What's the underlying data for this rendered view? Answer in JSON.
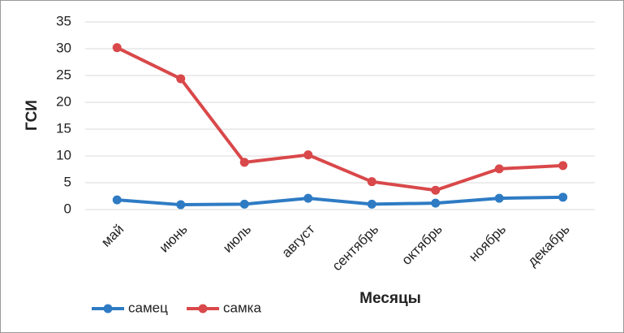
{
  "chart_data": {
    "type": "line",
    "x_label": "Месяцы",
    "y_label": "ГСИ",
    "categories": [
      "май",
      "июнь",
      "июль",
      "август",
      "сентябрь",
      "октябрь",
      "ноябрь",
      "декабрь"
    ],
    "series": [
      {
        "name": "самец",
        "color": "#2e7bc4",
        "values": [
          1.8,
          0.9,
          1.0,
          2.1,
          1.0,
          1.2,
          2.1,
          2.3
        ]
      },
      {
        "name": "самка",
        "color": "#d9484a",
        "values": [
          30.2,
          24.4,
          8.8,
          10.2,
          5.2,
          3.6,
          7.6,
          8.2
        ]
      }
    ],
    "ylim": [
      0,
      35
    ],
    "yticks": [
      0,
      5,
      10,
      15,
      20,
      25,
      30,
      35
    ],
    "grid": true,
    "legend": "bottom-left"
  }
}
